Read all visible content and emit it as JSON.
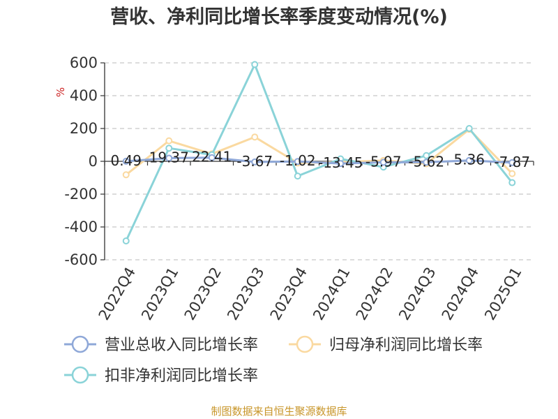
{
  "chart_data": {
    "type": "line",
    "title": "营收、净利同比增长率季度变动情况(%)",
    "ylabel": "%",
    "categories": [
      "2022Q4",
      "2023Q1",
      "2023Q2",
      "2023Q3",
      "2023Q4",
      "2024Q1",
      "2024Q2",
      "2024Q3",
      "2024Q4",
      "2025Q1"
    ],
    "ylim": [
      -600,
      600
    ],
    "yticks": [
      600,
      400,
      200,
      0,
      -200,
      -400,
      -600
    ],
    "grid": true,
    "legend_position": "bottom",
    "series": [
      {
        "name": "营业总收入同比增长率",
        "color": "#8fa8d8",
        "values": [
          0.49,
          19.37,
          22.41,
          -3.67,
          -1.02,
          -13.45,
          -5.97,
          -5.62,
          5.36,
          -7.87
        ],
        "labels": [
          "0.49",
          "19.37",
          "22.41",
          "-3.67",
          "-1.02",
          "-13.45",
          "-5.97",
          "-5.62",
          "5.36",
          "-7.87"
        ]
      },
      {
        "name": "归母净利润同比增长率",
        "color": "#fad9a0",
        "values": [
          -82,
          125,
          45,
          148,
          -10,
          -5,
          5,
          -15,
          195,
          -75
        ]
      },
      {
        "name": "扣非净利润同比增长率",
        "color": "#8ad3d8",
        "values": [
          -485,
          80,
          40,
          590,
          -90,
          15,
          -35,
          35,
          200,
          -130
        ]
      }
    ]
  },
  "source_note": "制图数据来自恒生聚源数据库"
}
